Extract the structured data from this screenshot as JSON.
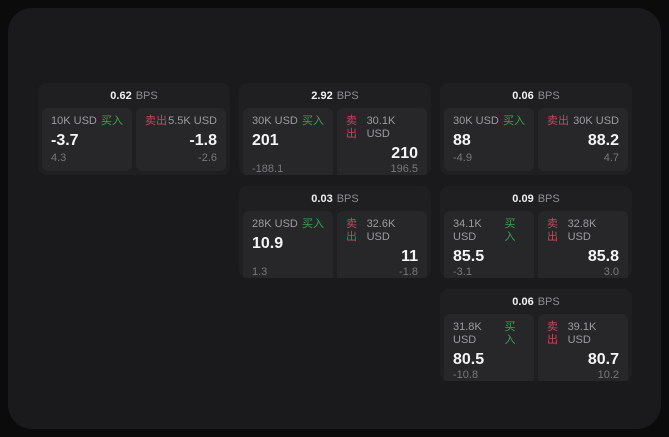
{
  "labels": {
    "bps_unit": "BPS",
    "buy": "买入",
    "sell": "卖出"
  },
  "colors": {
    "buy_accent": "#3aa353",
    "sell_accent": "#bf4a5c",
    "panel_bg": "#1a1a1c",
    "card_bg": "#1f1f21",
    "tile_bg": "#272729",
    "price_text": "#f4f4f6",
    "muted_text": "#9b9ba1"
  },
  "cards": [
    {
      "bps": "0.62",
      "buy": {
        "amount": "10K USD",
        "price": "-3.7",
        "delta": "4.3"
      },
      "sell": {
        "amount": "5.5K USD",
        "price": "-1.8",
        "delta": "-2.6"
      }
    },
    {
      "bps": "2.92",
      "buy": {
        "amount": "30K USD",
        "price": "201",
        "delta": "-188.1"
      },
      "sell": {
        "amount": "30.1K USD",
        "price": "210",
        "delta": "196.5"
      }
    },
    {
      "bps": "0.06",
      "buy": {
        "amount": "30K USD",
        "price": "88",
        "delta": "-4.9"
      },
      "sell": {
        "amount": "30K USD",
        "price": "88.2",
        "delta": "4.7"
      }
    },
    {
      "bps": "0.03",
      "buy": {
        "amount": "28K USD",
        "price": "10.9",
        "delta": "1.3"
      },
      "sell": {
        "amount": "32.6K USD",
        "price": "11",
        "delta": "-1.8"
      }
    },
    {
      "bps": "0.09",
      "buy": {
        "amount": "34.1K USD",
        "price": "85.5",
        "delta": "-3.1"
      },
      "sell": {
        "amount": "32.8K USD",
        "price": "85.8",
        "delta": "3.0"
      }
    },
    {
      "bps": "0.06",
      "buy": {
        "amount": "31.8K USD",
        "price": "80.5",
        "delta": "-10.8"
      },
      "sell": {
        "amount": "39.1K USD",
        "price": "80.7",
        "delta": "10.2"
      }
    }
  ]
}
